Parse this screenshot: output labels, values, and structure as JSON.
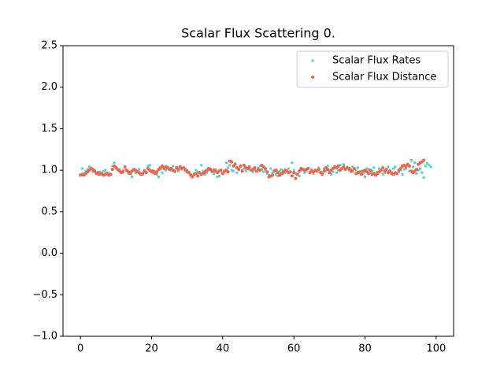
{
  "chart_data": {
    "type": "scatter",
    "title": "Scalar Flux Scattering 0.",
    "x": [
      0,
      0.5,
      1,
      1.5,
      2,
      2.5,
      3,
      3.5,
      4,
      4.5,
      5,
      5.5,
      6,
      6.5,
      7,
      7.5,
      8,
      8.5,
      9,
      9.5,
      10,
      10.5,
      11,
      11.5,
      12,
      12.5,
      13,
      13.5,
      14,
      14.5,
      15,
      15.5,
      16,
      16.5,
      17,
      17.5,
      18,
      18.5,
      19,
      19.5,
      20,
      20.5,
      21,
      21.5,
      22,
      22.5,
      23,
      23.5,
      24,
      24.5,
      25,
      25.5,
      26,
      26.5,
      27,
      27.5,
      28,
      28.5,
      29,
      29.5,
      30,
      30.5,
      31,
      31.5,
      32,
      32.5,
      33,
      33.5,
      34,
      34.5,
      35,
      35.5,
      36,
      36.5,
      37,
      37.5,
      38,
      38.5,
      39,
      39.5,
      40,
      40.5,
      41,
      41.5,
      42,
      42.5,
      43,
      43.5,
      44,
      44.5,
      45,
      45.5,
      46,
      46.5,
      47,
      47.5,
      48,
      48.5,
      49,
      49.5,
      50,
      50.5,
      51,
      51.5,
      52,
      52.5,
      53,
      53.5,
      54,
      54.5,
      55,
      55.5,
      56,
      56.5,
      57,
      57.5,
      58,
      58.5,
      59,
      59.5,
      60,
      60.5,
      61,
      61.5,
      62,
      62.5,
      63,
      63.5,
      64,
      64.5,
      65,
      65.5,
      66,
      66.5,
      67,
      67.5,
      68,
      68.5,
      69,
      69.5,
      70,
      70.5,
      71,
      71.5,
      72,
      72.5,
      73,
      73.5,
      74,
      74.5,
      75,
      75.5,
      76,
      76.5,
      77,
      77.5,
      78,
      78.5,
      79,
      79.5,
      80,
      80.5,
      81,
      81.5,
      82,
      82.5,
      83,
      83.5,
      84,
      84.5,
      85,
      85.5,
      86,
      86.5,
      87,
      87.5,
      88,
      88.5,
      89,
      89.5,
      90,
      90.5,
      91,
      91.5,
      92,
      92.5,
      93,
      93.5,
      94,
      94.5,
      95,
      95.5,
      96,
      96.5,
      97,
      97.5,
      98,
      98.5,
      99,
      99.5
    ],
    "series": [
      {
        "name": "Scalar Flux Rates",
        "color": "#4dd0d0",
        "marker": "square",
        "values": [
          0.95,
          1.02,
          0.96,
          0.99,
          1.01,
          1.04,
          1.03,
          0.98,
          1.0,
          0.97,
          0.95,
          0.98,
          0.96,
          0.99,
          1.0,
          0.97,
          0.96,
          0.95,
          1.05,
          1.09,
          1.04,
          1.0,
          1.01,
          0.98,
          0.97,
          1.03,
          0.99,
          0.96,
          0.98,
          0.92,
          1.0,
          0.97,
          0.99,
          1.01,
          0.96,
          0.95,
          1.0,
          0.98,
          1.05,
          1.06,
          1.0,
          0.97,
          0.98,
          0.95,
          0.92,
          1.01,
          0.97,
          1.03,
          1.0,
          1.04,
          1.02,
          1.0,
          1.05,
          0.98,
          1.03,
          0.99,
          1.04,
          1.01,
          1.03,
          1.02,
          1.0,
          0.98,
          0.95,
          0.93,
          0.96,
          1.0,
          0.98,
          0.97,
          1.06,
          0.99,
          0.95,
          0.97,
          1.0,
          1.02,
          0.98,
          0.96,
          1.01,
          0.92,
          0.93,
          1.0,
          0.96,
          0.98,
          1.09,
          1.03,
          1.06,
          1.0,
          0.99,
          1.08,
          0.97,
          1.02,
          1.04,
          1.0,
          1.02,
          0.99,
          1.03,
          1.01,
          1.0,
          0.98,
          1.01,
          0.99,
          1.03,
          1.05,
          1.01,
          0.98,
          1.0,
          0.96,
          0.94,
          1.02,
          0.97,
          1.0,
          0.95,
          0.93,
          0.99,
          1.01,
          0.96,
          0.97,
          1.0,
          1.02,
          0.98,
          1.09,
          1.0,
          0.96,
          0.95,
          0.93,
          1.0,
          1.01,
          0.97,
          0.99,
          1.02,
          0.98,
          1.01,
          0.96,
          0.99,
          1.0,
          1.03,
          0.98,
          0.97,
          1.02,
          0.99,
          1.05,
          1.0,
          0.95,
          0.98,
          1.03,
          0.97,
          1.0,
          1.06,
          1.02,
          1.07,
          1.01,
          1.03,
          1.0,
          0.98,
          1.04,
          1.02,
          1.0,
          1.03,
          0.97,
          0.99,
          0.96,
          0.92,
          1.02,
          1.01,
          0.97,
          0.99,
          1.03,
          0.96,
          0.98,
          1.02,
          1.0,
          0.95,
          0.97,
          0.99,
          1.04,
          1.0,
          0.97,
          1.02,
          1.04,
          0.96,
          0.98,
          1.0,
          0.95,
          1.01,
          1.02,
          1.07,
          0.99,
          1.12,
          1.04,
          1.09,
          0.96,
          1.0,
          1.02,
          0.97,
          0.91,
          1.05,
          1.08,
          1.06,
          1.04
        ]
      },
      {
        "name": "Scalar Flux Distance",
        "color": "#f2634b",
        "marker": "circle",
        "values": [
          0.94,
          0.95,
          0.94,
          0.96,
          0.98,
          1.0,
          1.02,
          1.01,
          0.99,
          0.96,
          0.97,
          0.95,
          0.96,
          0.94,
          0.95,
          0.96,
          0.94,
          0.95,
          1.01,
          1.05,
          1.03,
          1.01,
          0.99,
          0.97,
          0.99,
          1.04,
          1.0,
          0.98,
          0.96,
          0.99,
          1.01,
          1.0,
          0.98,
          0.97,
          0.95,
          0.96,
          0.99,
          0.97,
          1.02,
          1.0,
          0.98,
          0.99,
          0.96,
          0.98,
          1.01,
          1.03,
          1.05,
          1.02,
          1.04,
          1.03,
          1.01,
          1.02,
          1.0,
          0.99,
          1.03,
          1.01,
          1.04,
          1.02,
          1.03,
          1.0,
          0.98,
          0.97,
          0.94,
          0.92,
          0.95,
          0.96,
          0.93,
          0.97,
          0.95,
          0.96,
          0.98,
          1.0,
          1.02,
          1.01,
          0.99,
          1.0,
          0.99,
          0.97,
          0.99,
          1.0,
          0.96,
          0.99,
          1.0,
          0.98,
          1.11,
          1.1,
          1.05,
          1.07,
          1.03,
          1.01,
          1.05,
          0.99,
          1.06,
          1.03,
          1.02,
          1.04,
          1.0,
          1.01,
          1.03,
          0.99,
          1.01,
          1.0,
          1.06,
          1.04,
          1.02,
          0.98,
          0.92,
          0.93,
          0.94,
          0.99,
          1.0,
          0.97,
          0.94,
          0.96,
          0.98,
          1.0,
          0.99,
          0.97,
          0.98,
          0.93,
          0.97,
          0.9,
          0.95,
          0.99,
          1.02,
          1.01,
          1.0,
          1.01,
          1.02,
          0.97,
          0.99,
          0.98,
          1.0,
          0.99,
          1.01,
          0.97,
          0.95,
          0.99,
          1.03,
          1.01,
          0.97,
          1.0,
          1.02,
          1.04,
          1.03,
          1.05,
          1.0,
          1.02,
          1.04,
          1.01,
          1.03,
          1.02,
          1.0,
          0.99,
          1.02,
          0.96,
          0.97,
          0.98,
          0.95,
          0.99,
          1.0,
          0.98,
          0.96,
          1.0,
          0.95,
          0.96,
          0.94,
          0.96,
          0.98,
          1.0,
          1.03,
          0.99,
          1.01,
          0.97,
          0.99,
          0.96,
          0.95,
          0.97,
          0.96,
          1.0,
          1.02,
          1.05,
          1.06,
          1.04,
          1.07,
          1.05,
          0.99,
          0.97,
          0.99,
          1.01,
          1.07,
          1.09,
          1.1,
          1.12
        ]
      }
    ],
    "xlim": [
      -4.9,
      104.9
    ],
    "ylim": [
      -1.0,
      2.5
    ],
    "xticks": [
      0,
      20,
      40,
      60,
      80,
      100
    ],
    "yticks": [
      {
        "value": -1.0,
        "label": "−1.0"
      },
      {
        "value": -0.5,
        "label": "−0.5"
      },
      {
        "value": 0.0,
        "label": "0.0"
      },
      {
        "value": 0.5,
        "label": "0.5"
      },
      {
        "value": 1.0,
        "label": "1.0"
      },
      {
        "value": 1.5,
        "label": "1.5"
      },
      {
        "value": 2.0,
        "label": "2.0"
      },
      {
        "value": 2.5,
        "label": "2.5"
      }
    ],
    "grid": false,
    "legend": "upper right"
  }
}
